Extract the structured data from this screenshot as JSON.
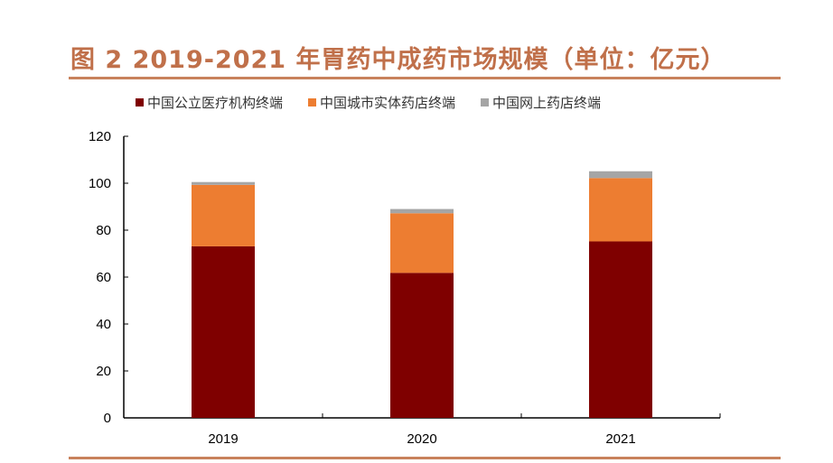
{
  "chart_data": {
    "type": "bar",
    "stacked": true,
    "title": "图 2  2019-2021 年胃药中成药市场规模（单位：亿元）",
    "categories": [
      "2019",
      "2020",
      "2021"
    ],
    "series": [
      {
        "name": "中国公立医疗机构终端",
        "color": "#7f0000",
        "values": [
          73.1,
          61.8,
          75.2
        ]
      },
      {
        "name": "中国城市实体药店终端",
        "color": "#ed7d31",
        "values": [
          26.2,
          25.4,
          27.0
        ]
      },
      {
        "name": "中国网上药店终端",
        "color": "#a5a5a5",
        "values": [
          1.2,
          1.8,
          2.9
        ]
      }
    ],
    "ylim": [
      0,
      120
    ],
    "yticks": [
      "0",
      "20",
      "40",
      "60",
      "80",
      "100",
      "120"
    ],
    "grid": false,
    "legend": "top"
  }
}
